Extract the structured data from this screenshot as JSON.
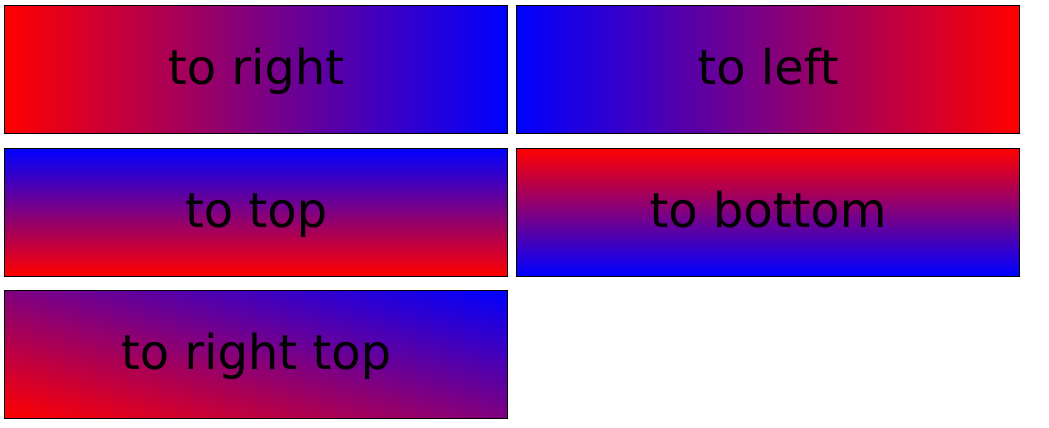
{
  "boxes": [
    {
      "label": "to right",
      "direction": "to right",
      "from_color": "#ff0000",
      "to_color": "#0000ff"
    },
    {
      "label": "to left",
      "direction": "to left",
      "from_color": "#ff0000",
      "to_color": "#0000ff"
    },
    {
      "label": "to top",
      "direction": "to top",
      "from_color": "#ff0000",
      "to_color": "#0000ff"
    },
    {
      "label": "to bottom",
      "direction": "to bottom",
      "from_color": "#ff0000",
      "to_color": "#0000ff"
    },
    {
      "label": "to right top",
      "direction": "to right top",
      "from_color": "#ff0000",
      "to_color": "#0000ff"
    }
  ]
}
